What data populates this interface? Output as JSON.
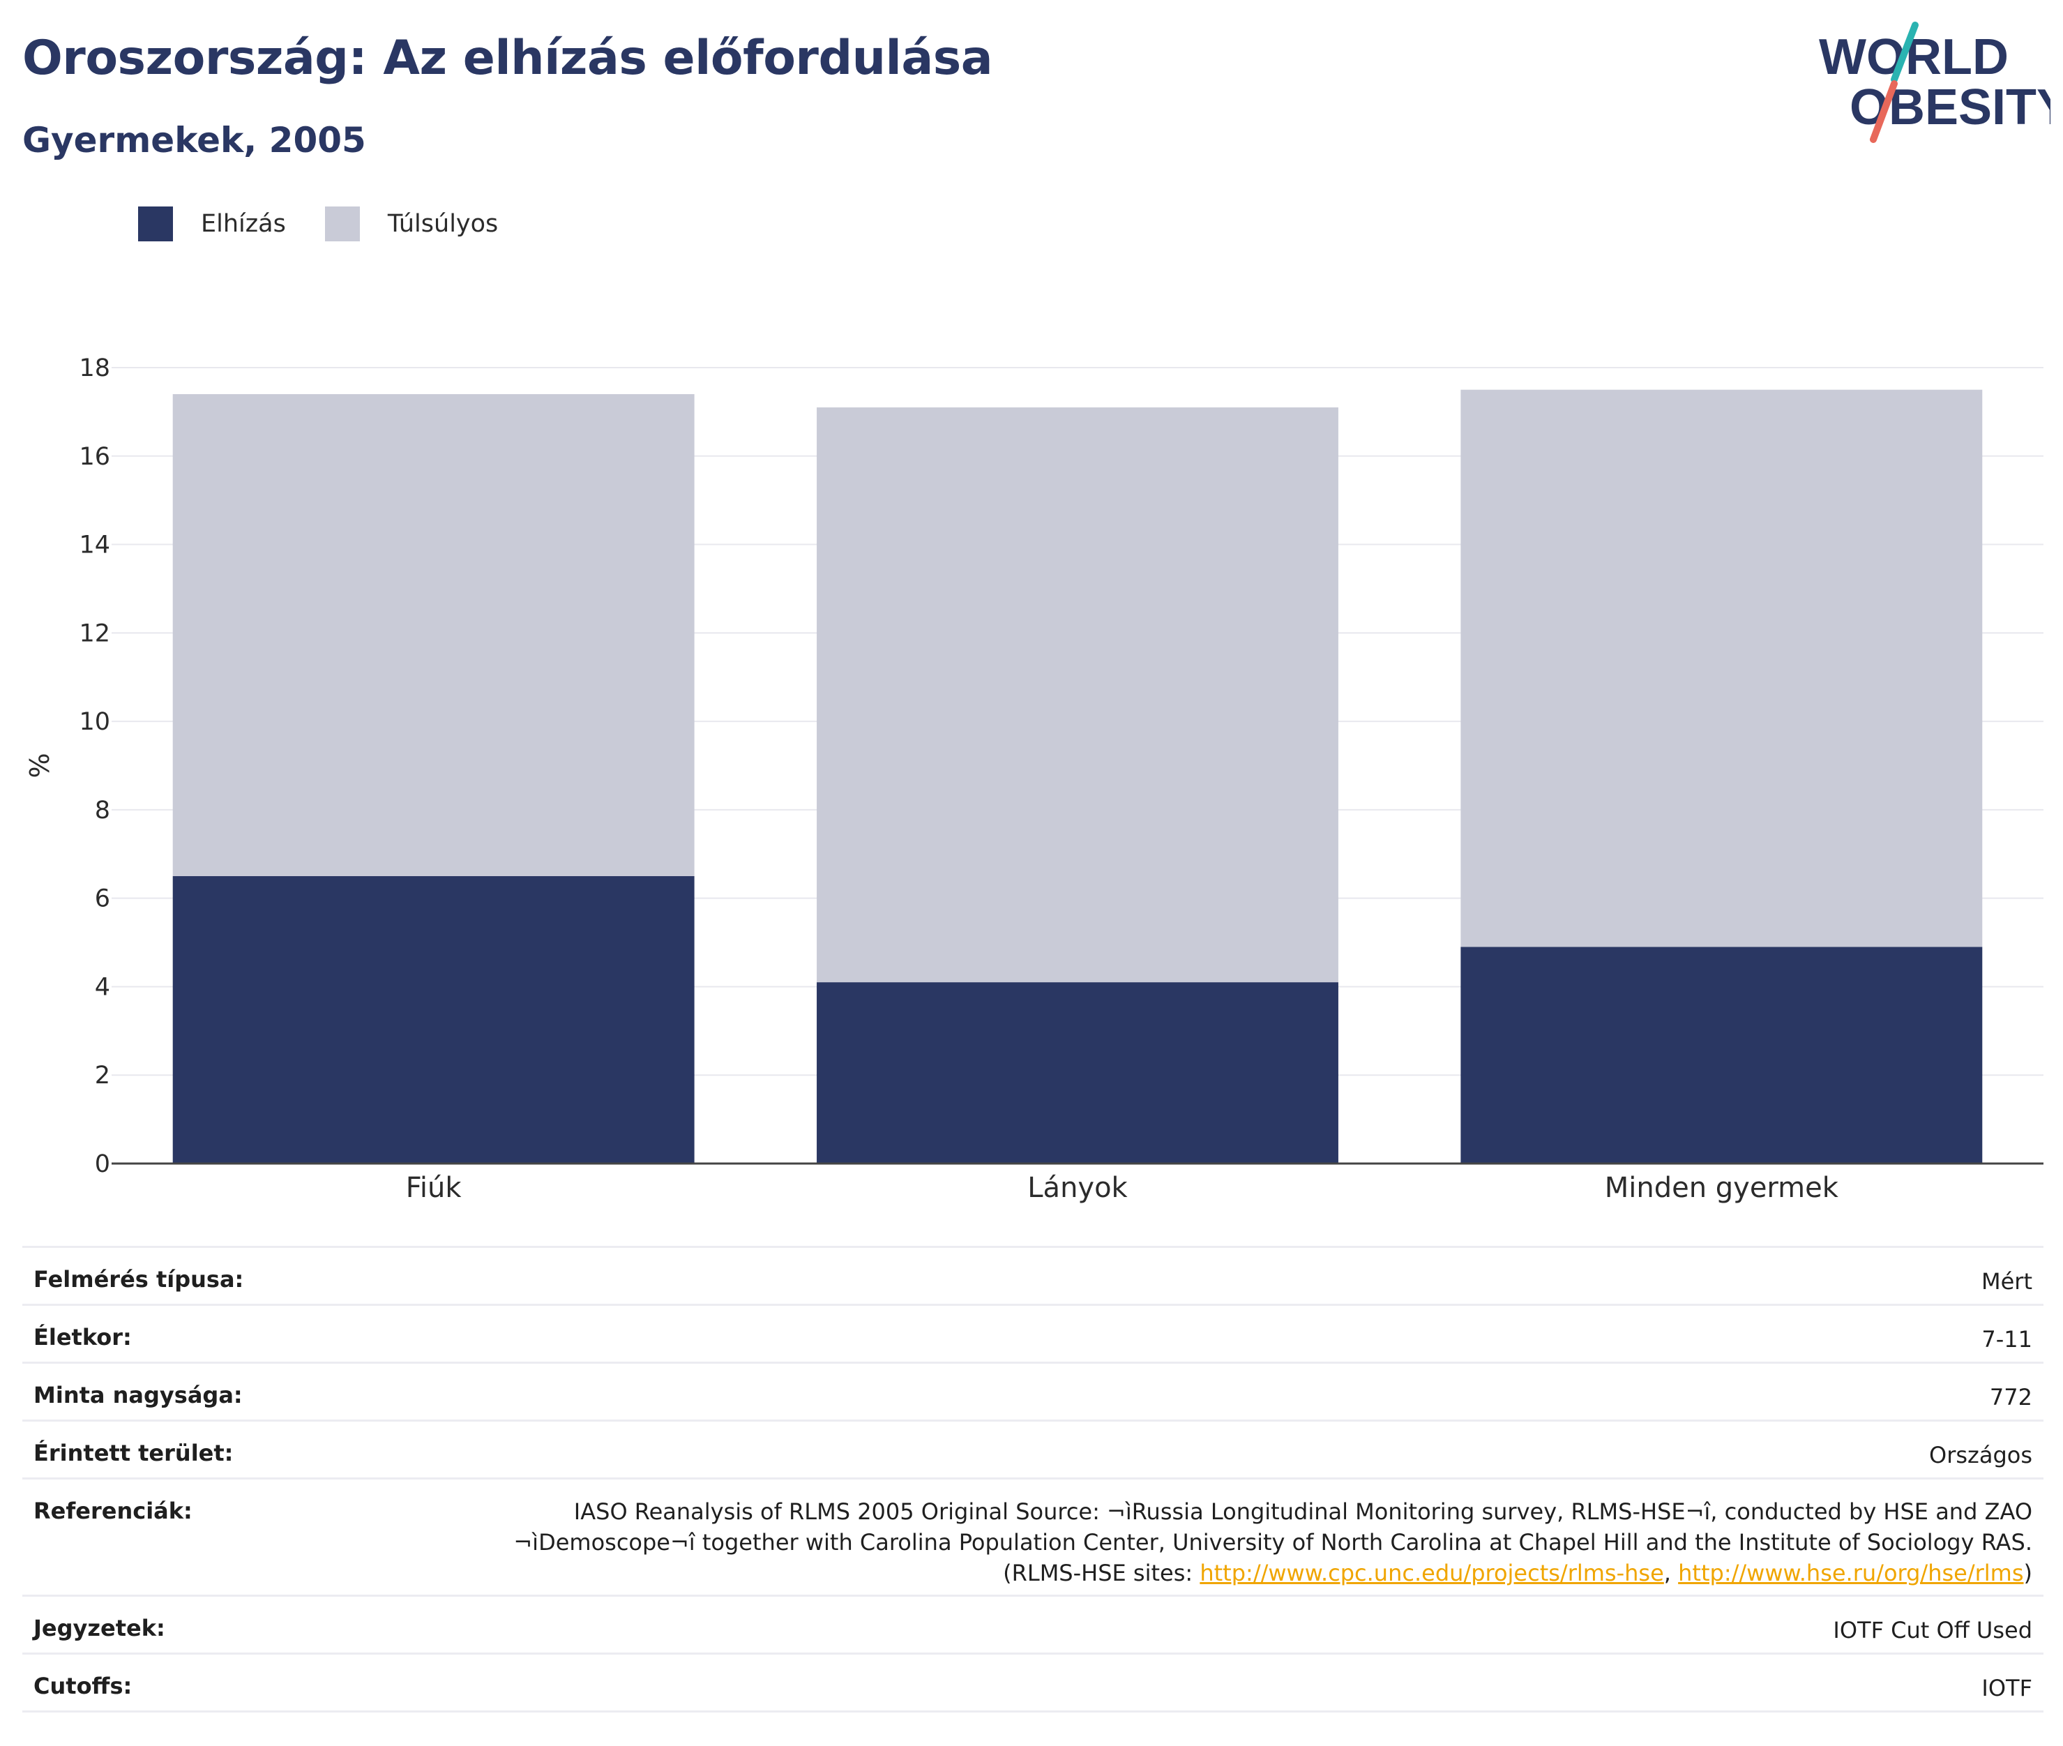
{
  "header": {
    "title": "Oroszország: Az elhízás előfordulása",
    "subtitle": "Gyermekek, 2005",
    "logo_line1": "WORLD",
    "logo_line2": "OBESITY"
  },
  "colors": {
    "obese": "#2a3763",
    "overweight": "#c9cbd7",
    "text": "#2a3763",
    "grid": "#e8e8ee",
    "axis": "#444444",
    "link": "#f0a500",
    "logo_teal": "#2ab3b1",
    "logo_coral": "#e8685a"
  },
  "chart_data": {
    "type": "bar",
    "stacked": true,
    "categories": [
      "Fiúk",
      "Lányok",
      "Minden gyermek"
    ],
    "series": [
      {
        "name": "Elhízás",
        "values": [
          6.5,
          4.1,
          4.9
        ]
      },
      {
        "name": "Túlsúlyos",
        "values": [
          10.9,
          13.0,
          12.6
        ]
      }
    ],
    "ylabel": "%",
    "xlabel": "",
    "ylim": [
      0,
      18
    ],
    "yticks": [
      0,
      2,
      4,
      6,
      8,
      10,
      12,
      14,
      16,
      18
    ],
    "grid": true,
    "legend_position": "top-left"
  },
  "meta": {
    "survey_label": "Felmérés típusa:",
    "survey_value": "Mért",
    "age_label": "Életkor:",
    "age_value": "7-11",
    "sample_label": "Minta nagysága:",
    "sample_value": "772",
    "area_label": "Érintett terület:",
    "area_value": "Országos",
    "refs_label": "Referenciák:",
    "refs_line1": "IASO Reanalysis of RLMS 2005 Original Source: ¬ìRussia Longitudinal Monitoring survey, RLMS-HSE¬î, conducted by HSE and ZAO",
    "refs_line2": "¬ìDemoscope¬î together with Carolina Population Center, University of North Carolina at Chapel Hill and the Institute of Sociology RAS.",
    "refs_line3_prefix": "(RLMS-HSE sites: ",
    "refs_link1": "http://www.cpc.unc.edu/projects/rlms-hse",
    "refs_sep": ", ",
    "refs_link2": "http://www.hse.ru/org/hse/rlms",
    "refs_line3_suffix": ")",
    "notes_label": "Jegyzetek:",
    "notes_value": "IOTF Cut Off Used",
    "cutoffs_label": "Cutoffs:",
    "cutoffs_value": "IOTF"
  }
}
